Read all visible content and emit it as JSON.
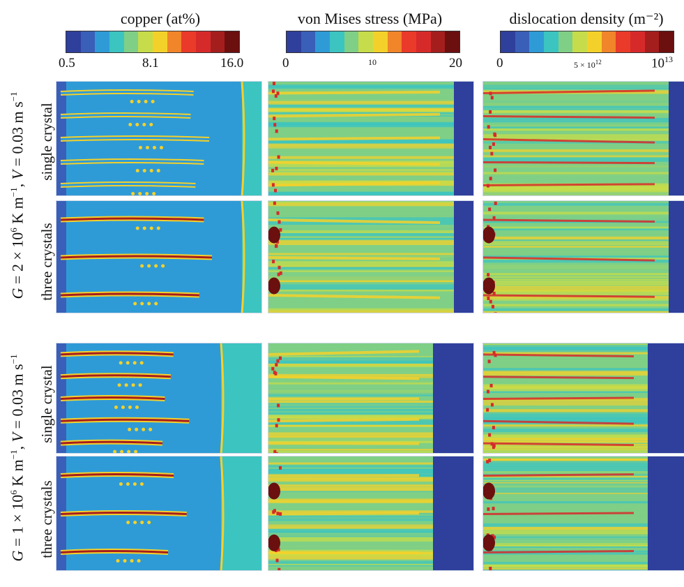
{
  "colorbars": [
    {
      "title": "copper (at%)",
      "ticks": [
        "0.5",
        "8.1",
        "16.0"
      ]
    },
    {
      "title": "von Mises stress (MPa)",
      "ticks": [
        "0",
        "10",
        "20"
      ]
    },
    {
      "title": "dislocation density (m⁻²)",
      "ticks": [
        "0",
        "5 × 10",
        "12",
        "10",
        "13"
      ]
    }
  ],
  "colormap": [
    "#2f3f9c",
    "#3a5fb8",
    "#2f9bd6",
    "#3cc4c0",
    "#7fcf86",
    "#c6dc4a",
    "#f4d12a",
    "#f0852a",
    "#ea3a2a",
    "#d62a2a",
    "#a51e1e",
    "#6b0f0f"
  ],
  "conditions": [
    {
      "G": "G",
      "eq1": " = 2 × 10",
      "exp1": "6",
      "unit1": " K m",
      "exp2": "−1",
      "V": "V",
      "eq2": " = 0.03 m s",
      "exp3": "−1"
    },
    {
      "G": "G",
      "eq1": " = 1 × 10",
      "exp1": "6",
      "unit1": " K m",
      "exp2": "−1",
      "V": "V",
      "eq2": " = 0.03 m s",
      "exp3": "−1"
    }
  ],
  "row_labels": [
    "single crystal",
    "three crystals",
    "single crystal",
    "three crystals"
  ],
  "panel_icons": [
    "copper-field-icon",
    "stress-field-icon",
    "dislocation-field-icon"
  ]
}
